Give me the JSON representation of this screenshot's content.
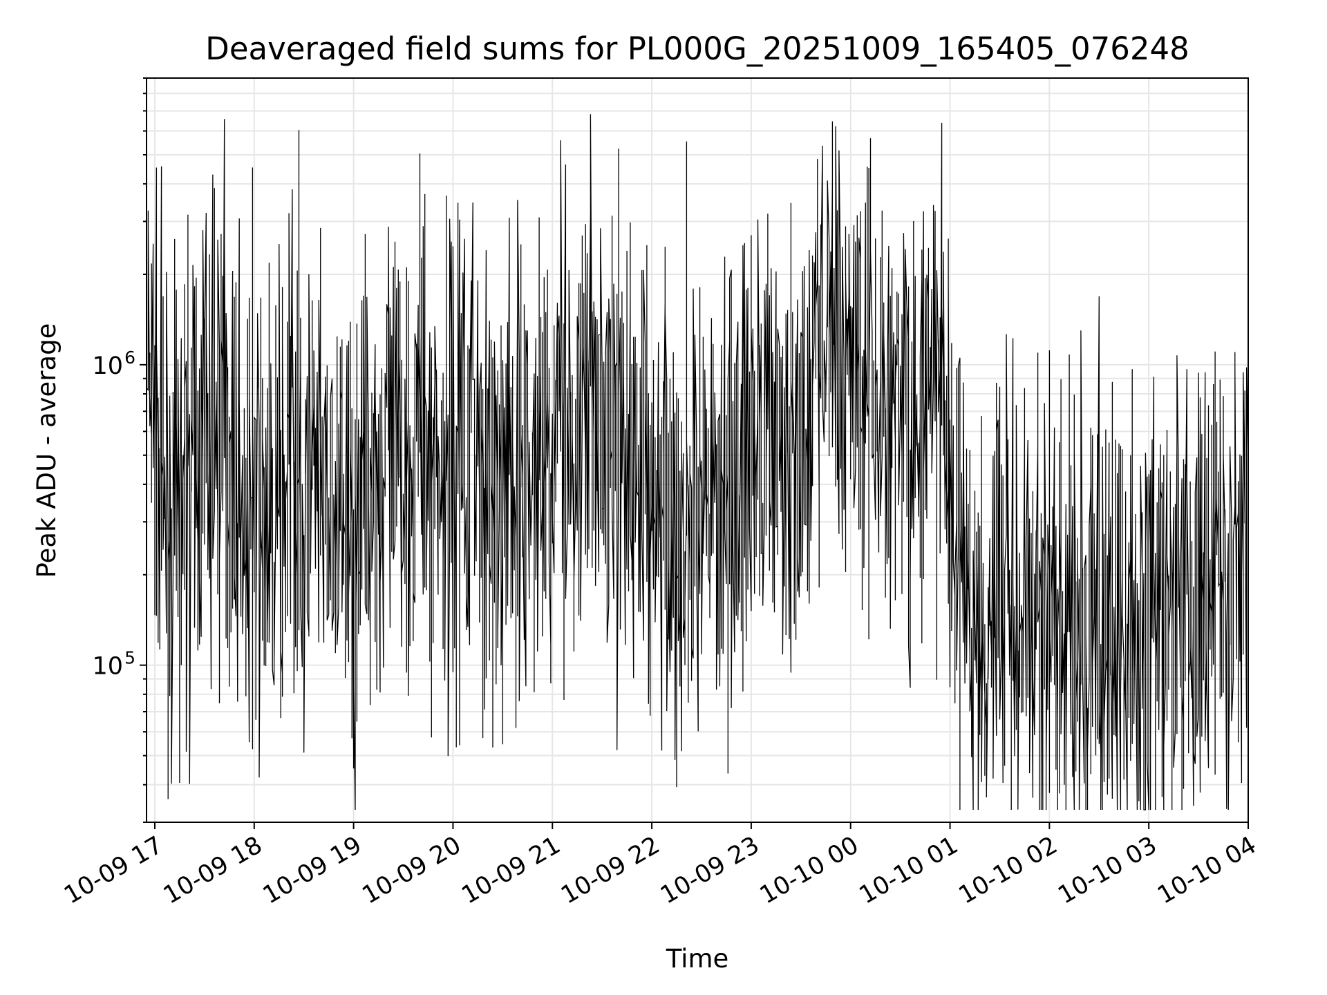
{
  "chart_data": {
    "type": "line",
    "title": "Deaveraged field sums for PL000G_20251009_165405_076248",
    "xlabel": "Time",
    "ylabel": "Peak ADU - average",
    "yscale": "log",
    "grid": true,
    "xlim": [
      "2025-10-09 16:55",
      "2025-10-10 04:00"
    ],
    "ylim": [
      30000,
      9000000
    ],
    "xticks": [
      {
        "t": "2025-10-09 17:00",
        "label": "10-09 17"
      },
      {
        "t": "2025-10-09 18:00",
        "label": "10-09 18"
      },
      {
        "t": "2025-10-09 19:00",
        "label": "10-09 19"
      },
      {
        "t": "2025-10-09 20:00",
        "label": "10-09 20"
      },
      {
        "t": "2025-10-09 21:00",
        "label": "10-09 21"
      },
      {
        "t": "2025-10-09 22:00",
        "label": "10-09 22"
      },
      {
        "t": "2025-10-09 23:00",
        "label": "10-09 23"
      },
      {
        "t": "2025-10-10 00:00",
        "label": "10-10 00"
      },
      {
        "t": "2025-10-10 01:00",
        "label": "10-10 01"
      },
      {
        "t": "2025-10-10 02:00",
        "label": "10-10 02"
      },
      {
        "t": "2025-10-10 03:00",
        "label": "10-10 03"
      },
      {
        "t": "2025-10-10 04:00",
        "label": "10-10 04"
      }
    ],
    "yticks": [
      {
        "value": 100000,
        "base": "10",
        "exp": "5"
      },
      {
        "value": 1000000,
        "base": "10",
        "exp": "6"
      }
    ],
    "series": [
      {
        "color": "#000000",
        "note": "dense noisy trace; approximate envelope sampled at regular intervals",
        "x": [
          "2025-10-09 16:55",
          "2025-10-09 17:10",
          "2025-10-09 17:25",
          "2025-10-09 17:40",
          "2025-10-09 17:55",
          "2025-10-09 18:10",
          "2025-10-09 18:25",
          "2025-10-09 18:40",
          "2025-10-09 18:55",
          "2025-10-09 19:10",
          "2025-10-09 19:25",
          "2025-10-09 19:40",
          "2025-10-09 19:55",
          "2025-10-09 20:10",
          "2025-10-09 20:25",
          "2025-10-09 20:40",
          "2025-10-09 20:55",
          "2025-10-09 21:10",
          "2025-10-09 21:25",
          "2025-10-09 21:40",
          "2025-10-09 21:55",
          "2025-10-09 22:10",
          "2025-10-09 22:25",
          "2025-10-09 22:40",
          "2025-10-09 22:55",
          "2025-10-09 23:10",
          "2025-10-09 23:25",
          "2025-10-09 23:40",
          "2025-10-09 23:55",
          "2025-10-10 00:10",
          "2025-10-10 00:25",
          "2025-10-10 00:40",
          "2025-10-10 00:55",
          "2025-10-10 01:10",
          "2025-10-10 01:25",
          "2025-10-10 01:40",
          "2025-10-10 01:55",
          "2025-10-10 02:10",
          "2025-10-10 02:25",
          "2025-10-10 02:40",
          "2025-10-10 02:55",
          "2025-10-10 03:10",
          "2025-10-10 03:25",
          "2025-10-10 03:40",
          "2025-10-10 03:55",
          "2025-10-10 04:00"
        ],
        "y": [
          1000000,
          300000,
          450000,
          700000,
          350000,
          300000,
          450000,
          350000,
          250000,
          400000,
          500000,
          600000,
          450000,
          700000,
          300000,
          350000,
          550000,
          700000,
          700000,
          600000,
          400000,
          300000,
          220000,
          350000,
          500000,
          600000,
          500000,
          1200000,
          1300000,
          1000000,
          700000,
          600000,
          800000,
          180000,
          160000,
          160000,
          150000,
          140000,
          130000,
          130000,
          130000,
          140000,
          150000,
          170000,
          200000,
          350000
        ]
      }
    ]
  }
}
